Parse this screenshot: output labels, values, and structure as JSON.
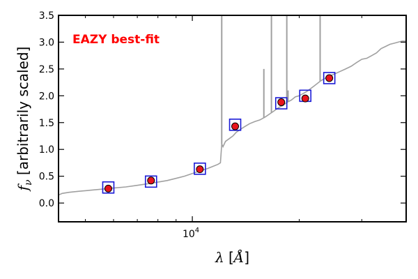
{
  "chart_data": {
    "type": "scatter",
    "title": "",
    "xlabel": "λ [Å]",
    "ylabel": "f_ν [arbitrarily scaled]",
    "x_scale": "log",
    "xlim": [
      4200,
      40000
    ],
    "ylim": [
      -0.35,
      3.5
    ],
    "yticks": [
      "0.0",
      "0.5",
      "1.0",
      "1.5",
      "2.0",
      "2.5",
      "3.0",
      "3.5"
    ],
    "xticks": [
      {
        "value": 10000,
        "base": "10",
        "exp": "4"
      }
    ],
    "grid": false,
    "annotation": {
      "text": "EAZY best-fit",
      "color": "#ff0000"
    },
    "template_color": "#a0a0a0",
    "point_face_color": "#e8141c",
    "box_color": "#1a1ad6",
    "observed_points": {
      "x": [
        5800,
        7650,
        10500,
        13200,
        17800,
        20800,
        24300
      ],
      "y": [
        0.27,
        0.42,
        0.63,
        1.43,
        1.88,
        1.95,
        2.33
      ]
    },
    "model_points": {
      "x": [
        5800,
        7650,
        10500,
        13200,
        17800,
        20800,
        24300
      ],
      "y": [
        0.29,
        0.4,
        0.64,
        1.46,
        1.86,
        2.0,
        2.33
      ]
    },
    "template_curve": {
      "x": [
        4200,
        4300,
        4500,
        4800,
        5200,
        5600,
        6000,
        6500,
        7000,
        7500,
        8000,
        8500,
        9000,
        9500,
        10000,
        10500,
        11000,
        11400,
        11800,
        12000,
        12100,
        12200,
        12400,
        12700,
        13000,
        13300,
        13700,
        14000,
        14500,
        15000,
        15500,
        16000,
        16500,
        17000,
        17500,
        18000,
        18500,
        19000,
        19500,
        20000,
        21000,
        22000,
        23000,
        24000,
        25000,
        26000,
        27000,
        28000,
        29000,
        30000,
        31000,
        32000,
        33000,
        34000,
        35000,
        36000,
        37000,
        38000,
        39000,
        40000
      ],
      "y": [
        0.15,
        0.18,
        0.2,
        0.22,
        0.24,
        0.26,
        0.28,
        0.3,
        0.33,
        0.36,
        0.39,
        0.42,
        0.46,
        0.5,
        0.55,
        0.6,
        0.64,
        0.68,
        0.72,
        0.75,
        1.1,
        1.05,
        1.15,
        1.2,
        1.25,
        1.32,
        1.38,
        1.42,
        1.48,
        1.52,
        1.55,
        1.6,
        1.66,
        1.72,
        1.78,
        1.82,
        1.88,
        1.92,
        1.98,
        2.0,
        2.08,
        2.18,
        2.28,
        2.35,
        2.4,
        2.45,
        2.5,
        2.55,
        2.62,
        2.68,
        2.7,
        2.75,
        2.8,
        2.88,
        2.92,
        2.96,
        2.98,
        3.0,
        3.02,
        3.02
      ]
    },
    "emission_spikes": [
      {
        "x": 12100,
        "y": 3.6
      },
      {
        "x": 15900,
        "y": 2.5
      },
      {
        "x": 16700,
        "y": 3.6
      },
      {
        "x": 18450,
        "y": 3.6
      },
      {
        "x": 18600,
        "y": 2.1
      },
      {
        "x": 22900,
        "y": 3.6
      }
    ]
  }
}
